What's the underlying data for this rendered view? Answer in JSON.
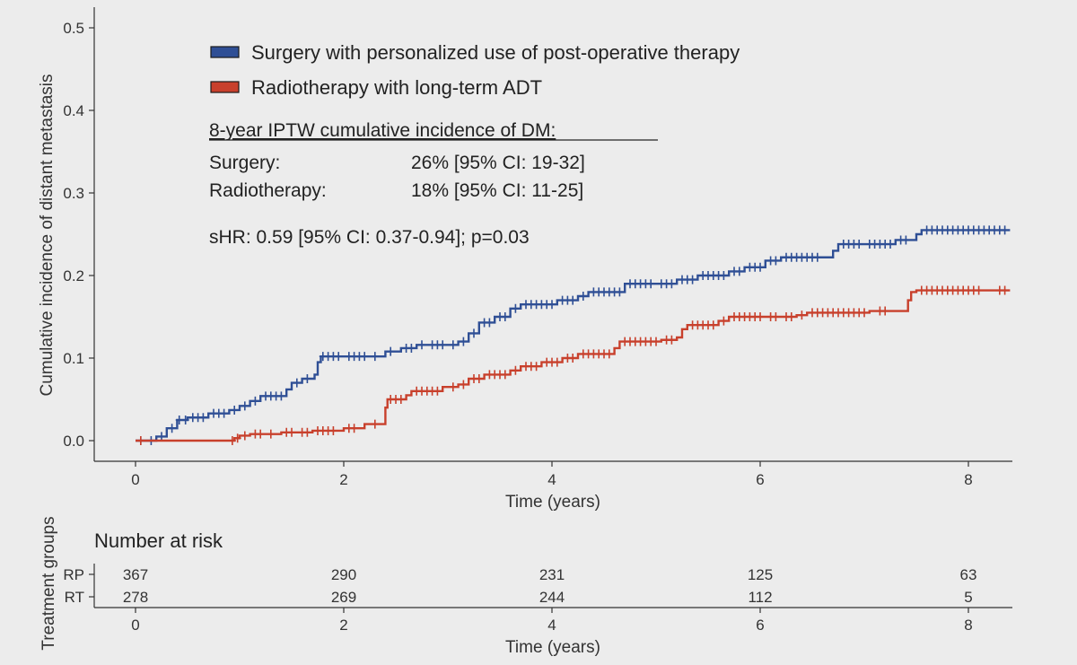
{
  "chart_data": [
    {
      "type": "line",
      "step": true,
      "ylabel": "Cumulative incidence of distant metastasis",
      "xlabel": "Time (years)",
      "xlim": [
        0,
        8.4
      ],
      "ylim": [
        0,
        0.5
      ],
      "x_ticks": [
        "0",
        "2",
        "4",
        "6",
        "8"
      ],
      "y_ticks": [
        "0.0",
        "0.1",
        "0.2",
        "0.3",
        "0.4",
        "0.5"
      ],
      "grid": false,
      "legend_position": "top-left",
      "series": [
        {
          "name": "Surgery with personalized use of post-operative therapy",
          "color": "#2f4f95",
          "points": [
            [
              0,
              0
            ],
            [
              0.2,
              0.005
            ],
            [
              0.3,
              0.015
            ],
            [
              0.4,
              0.025
            ],
            [
              0.5,
              0.028
            ],
            [
              0.7,
              0.033
            ],
            [
              0.9,
              0.037
            ],
            [
              1.0,
              0.042
            ],
            [
              1.1,
              0.048
            ],
            [
              1.2,
              0.054
            ],
            [
              1.45,
              0.062
            ],
            [
              1.5,
              0.07
            ],
            [
              1.6,
              0.075
            ],
            [
              1.72,
              0.08
            ],
            [
              1.75,
              0.095
            ],
            [
              1.78,
              0.102
            ],
            [
              2.0,
              0.102
            ],
            [
              2.4,
              0.108
            ],
            [
              2.55,
              0.112
            ],
            [
              2.7,
              0.116
            ],
            [
              3.1,
              0.12
            ],
            [
              3.2,
              0.13
            ],
            [
              3.3,
              0.143
            ],
            [
              3.45,
              0.15
            ],
            [
              3.6,
              0.16
            ],
            [
              3.7,
              0.165
            ],
            [
              4.05,
              0.17
            ],
            [
              4.25,
              0.175
            ],
            [
              4.35,
              0.18
            ],
            [
              4.7,
              0.19
            ],
            [
              5.0,
              0.19
            ],
            [
              5.2,
              0.195
            ],
            [
              5.4,
              0.2
            ],
            [
              5.7,
              0.205
            ],
            [
              5.85,
              0.21
            ],
            [
              6.05,
              0.218
            ],
            [
              6.2,
              0.222
            ],
            [
              6.6,
              0.222
            ],
            [
              6.7,
              0.23
            ],
            [
              6.75,
              0.238
            ],
            [
              7.0,
              0.238
            ],
            [
              7.3,
              0.243
            ],
            [
              7.5,
              0.25
            ],
            [
              7.55,
              0.255
            ],
            [
              8.4,
              0.255
            ]
          ],
          "censor_x": [
            0.05,
            0.15,
            0.25,
            0.35,
            0.42,
            0.48,
            0.55,
            0.6,
            0.65,
            0.75,
            0.8,
            0.85,
            0.95,
            1.05,
            1.15,
            1.25,
            1.3,
            1.35,
            1.4,
            1.55,
            1.65,
            1.8,
            1.85,
            1.9,
            1.95,
            2.05,
            2.1,
            2.15,
            2.2,
            2.3,
            2.45,
            2.6,
            2.65,
            2.75,
            2.85,
            2.9,
            2.95,
            3.05,
            3.15,
            3.25,
            3.35,
            3.4,
            3.5,
            3.55,
            3.65,
            3.75,
            3.8,
            3.85,
            3.9,
            3.95,
            4.0,
            4.1,
            4.15,
            4.2,
            4.3,
            4.4,
            4.45,
            4.5,
            4.55,
            4.6,
            4.65,
            4.75,
            4.8,
            4.85,
            4.9,
            4.95,
            5.05,
            5.1,
            5.15,
            5.25,
            5.3,
            5.35,
            5.45,
            5.5,
            5.55,
            5.6,
            5.65,
            5.75,
            5.8,
            5.9,
            5.95,
            6.0,
            6.1,
            6.15,
            6.25,
            6.3,
            6.35,
            6.4,
            6.45,
            6.5,
            6.55,
            6.8,
            6.85,
            6.9,
            6.95,
            7.05,
            7.1,
            7.15,
            7.2,
            7.25,
            7.35,
            7.4,
            7.6,
            7.65,
            7.7,
            7.75,
            7.8,
            7.85,
            7.9,
            7.95,
            8.0,
            8.05,
            8.1,
            8.15,
            8.2,
            8.25,
            8.3,
            8.35
          ]
        },
        {
          "name": "Radiotherapy with long-term ADT",
          "color": "#c8402c",
          "points": [
            [
              0,
              0
            ],
            [
              0.9,
              0.0
            ],
            [
              0.95,
              0.003
            ],
            [
              1.0,
              0.006
            ],
            [
              1.1,
              0.008
            ],
            [
              1.4,
              0.01
            ],
            [
              1.7,
              0.012
            ],
            [
              2.0,
              0.015
            ],
            [
              2.2,
              0.02
            ],
            [
              2.4,
              0.03
            ],
            [
              2.4,
              0.04
            ],
            [
              2.42,
              0.05
            ],
            [
              2.6,
              0.055
            ],
            [
              2.65,
              0.06
            ],
            [
              2.95,
              0.065
            ],
            [
              3.1,
              0.068
            ],
            [
              3.2,
              0.075
            ],
            [
              3.35,
              0.08
            ],
            [
              3.6,
              0.085
            ],
            [
              3.7,
              0.09
            ],
            [
              3.9,
              0.095
            ],
            [
              4.1,
              0.1
            ],
            [
              4.25,
              0.105
            ],
            [
              4.6,
              0.112
            ],
            [
              4.65,
              0.12
            ],
            [
              5.05,
              0.122
            ],
            [
              5.2,
              0.125
            ],
            [
              5.25,
              0.135
            ],
            [
              5.3,
              0.14
            ],
            [
              5.6,
              0.145
            ],
            [
              5.7,
              0.15
            ],
            [
              6.2,
              0.15
            ],
            [
              6.35,
              0.152
            ],
            [
              6.45,
              0.155
            ],
            [
              7.05,
              0.157
            ],
            [
              7.4,
              0.157
            ],
            [
              7.42,
              0.17
            ],
            [
              7.45,
              0.18
            ],
            [
              7.5,
              0.182
            ],
            [
              8.4,
              0.182
            ]
          ],
          "censor_x": [
            0.05,
            0.93,
            0.98,
            1.05,
            1.15,
            1.2,
            1.3,
            1.45,
            1.5,
            1.6,
            1.65,
            1.75,
            1.8,
            1.85,
            1.9,
            2.05,
            2.1,
            2.3,
            2.45,
            2.5,
            2.55,
            2.7,
            2.75,
            2.8,
            2.85,
            2.9,
            3.05,
            3.15,
            3.25,
            3.3,
            3.4,
            3.45,
            3.5,
            3.55,
            3.65,
            3.75,
            3.8,
            3.85,
            3.95,
            4.0,
            4.05,
            4.15,
            4.2,
            4.3,
            4.35,
            4.4,
            4.45,
            4.5,
            4.55,
            4.7,
            4.75,
            4.8,
            4.85,
            4.9,
            4.95,
            5.0,
            5.1,
            5.15,
            5.35,
            5.4,
            5.45,
            5.5,
            5.55,
            5.65,
            5.75,
            5.8,
            5.85,
            5.9,
            5.95,
            6.0,
            6.1,
            6.15,
            6.25,
            6.3,
            6.4,
            6.5,
            6.55,
            6.6,
            6.65,
            6.7,
            6.75,
            6.8,
            6.85,
            6.9,
            6.95,
            7.0,
            7.15,
            7.2,
            7.55,
            7.6,
            7.65,
            7.7,
            7.75,
            7.8,
            7.85,
            7.9,
            7.95,
            8.0,
            8.05,
            8.1,
            8.3,
            8.35
          ]
        }
      ],
      "annotations": {
        "heading": "8-year IPTW cumulative incidence of DM:",
        "rows": [
          {
            "label": "Surgery:",
            "value": "26% [95% CI: 19-32]"
          },
          {
            "label": "Radiotherapy:",
            "value": "18% [95% CI: 11-25]"
          }
        ],
        "shr": "sHR: 0.59 [95% CI: 0.37-0.94]; p=0.03"
      }
    },
    {
      "type": "table",
      "title": "Number at risk",
      "ylabel": "Treatment groups",
      "xlabel": "Time (years)",
      "x_ticks": [
        "0",
        "2",
        "4",
        "6",
        "8"
      ],
      "rows": [
        {
          "group": "RP",
          "values": [
            "367",
            "290",
            "231",
            "125",
            "63"
          ]
        },
        {
          "group": "RT",
          "values": [
            "278",
            "269",
            "244",
            "112",
            "5"
          ]
        }
      ]
    }
  ]
}
